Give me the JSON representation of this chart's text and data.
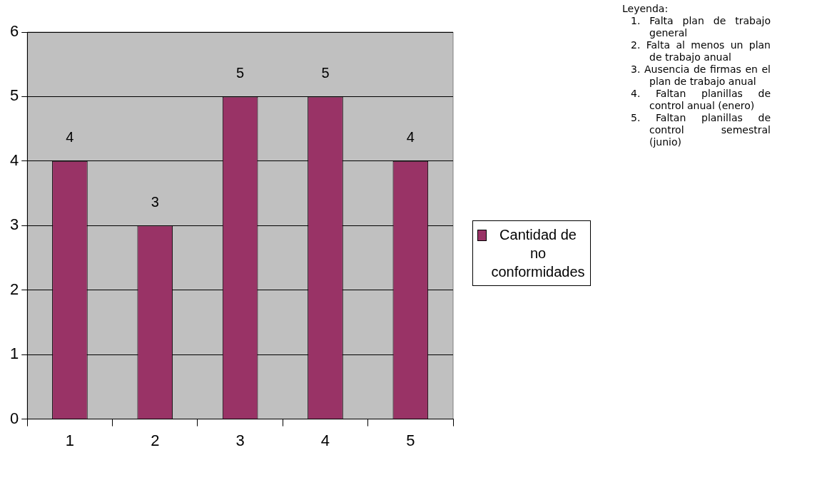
{
  "chart_data": {
    "type": "bar",
    "categories": [
      "1",
      "2",
      "3",
      "4",
      "5"
    ],
    "series": [
      {
        "name": "Cantidad de no conformidades",
        "color": "#993366",
        "values": [
          4,
          3,
          5,
          5,
          4
        ]
      }
    ],
    "ylim": [
      0,
      6
    ],
    "yticks": [
      0,
      1,
      2,
      3,
      4,
      5,
      6
    ],
    "grid": "y",
    "legend": "right",
    "data_labels": true,
    "annotations": [
      "Leyenda:",
      "1. Falta plan de trabajo general",
      "2. Falta al menos un plan de trabajo anual",
      "3. Ausencia de firmas en el plan de trabajo anual",
      "4. Faltan planillas de control anual (enero)",
      "5. Faltan planillas de control semestral (junio)"
    ]
  }
}
